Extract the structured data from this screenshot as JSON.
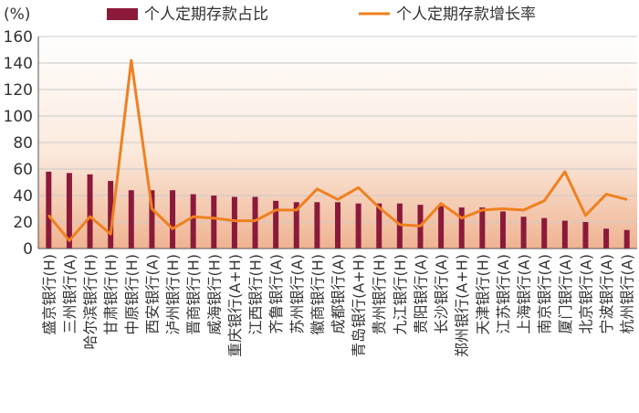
{
  "chart_data": {
    "type": "bar",
    "y_unit_label": "(%)",
    "ylim": [
      0,
      160
    ],
    "yticks": [
      0,
      20,
      40,
      60,
      80,
      100,
      120,
      140,
      160
    ],
    "legend_position": "top",
    "categories": [
      "盛京银行(H)",
      "三州银行(A)",
      "哈尔滨银行(H)",
      "甘肃银行(H)",
      "中原银行(H)",
      "西安银行(A)",
      "泸州银行(H)",
      "晋商银行(H)",
      "威海银行(H)",
      "重庆银行(A+H)",
      "江西银行(H)",
      "齐鲁银行(A)",
      "苏州银行(A)",
      "徽商银行(H)",
      "成都银行(A)",
      "青岛银行(A+H)",
      "贵州银行(H)",
      "九江银行(H)",
      "贵阳银行(A)",
      "长沙银行(A)",
      "郑州银行(A+H)",
      "天津银行(H)",
      "江苏银行(A)",
      "上海银行(A)",
      "南京银行(A)",
      "厦门银行(A)",
      "北京银行(A)",
      "宁波银行(A)",
      "杭州银行(A)"
    ],
    "series": [
      {
        "name": "个人定期存款占比",
        "type": "bar",
        "color": "#8b1a3a",
        "values": [
          58,
          57,
          56,
          51,
          44,
          44,
          44,
          41,
          40,
          39,
          39,
          36,
          35,
          35,
          35,
          34,
          34,
          34,
          33,
          32,
          31,
          31,
          28,
          24,
          23,
          21,
          20,
          15,
          14
        ]
      },
      {
        "name": "个人定期存款增长率",
        "type": "line",
        "color": "#f08020",
        "values": [
          25,
          6,
          24,
          11,
          142,
          30,
          15,
          24,
          23,
          21,
          21,
          29,
          29,
          45,
          37,
          46,
          31,
          18,
          17,
          34,
          23,
          29,
          30,
          29,
          36,
          58,
          25,
          41,
          37
        ]
      }
    ]
  }
}
